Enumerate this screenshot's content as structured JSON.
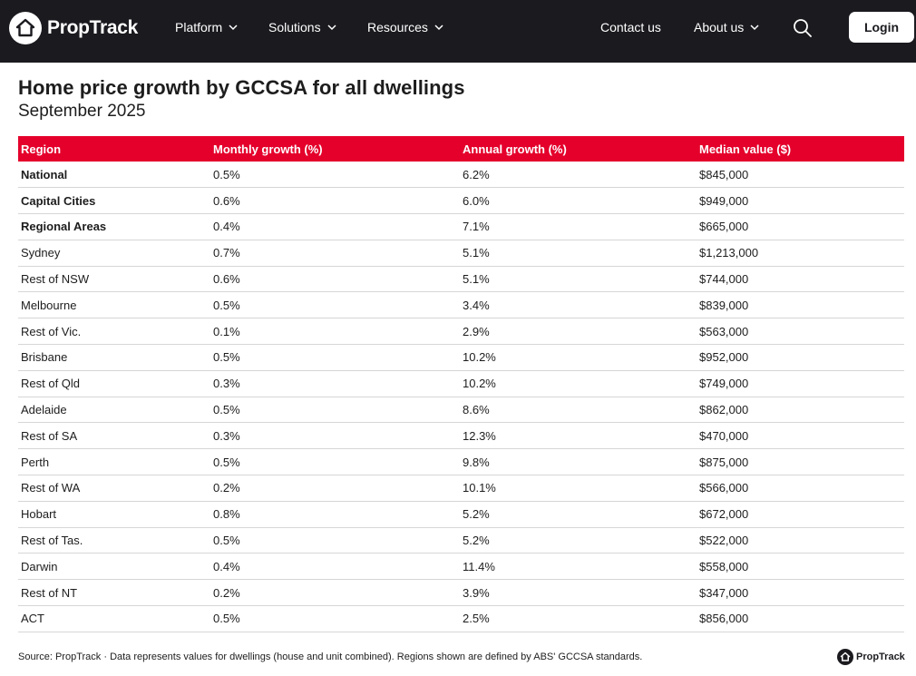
{
  "nav": {
    "logo_text": "PropTrack",
    "items": [
      {
        "label": "Platform"
      },
      {
        "label": "Solutions"
      },
      {
        "label": "Resources"
      },
      {
        "label": "Contact us"
      },
      {
        "label": "About us"
      }
    ],
    "login_label": "Login"
  },
  "page": {
    "title": "Home price growth by GCCSA for all dwellings",
    "subtitle": "September 2025"
  },
  "table": {
    "headers": [
      "Region",
      "Monthly growth (%)",
      "Annual growth (%)",
      "Median value ($)"
    ],
    "rows": [
      {
        "region": "National",
        "monthly": "0.5%",
        "annual": "6.2%",
        "median": "$845,000",
        "bold": true
      },
      {
        "region": "Capital Cities",
        "monthly": "0.6%",
        "annual": "6.0%",
        "median": "$949,000",
        "bold": true
      },
      {
        "region": "Regional Areas",
        "monthly": "0.4%",
        "annual": "7.1%",
        "median": "$665,000",
        "bold": true
      },
      {
        "region": "Sydney",
        "monthly": "0.7%",
        "annual": "5.1%",
        "median": "$1,213,000",
        "bold": false
      },
      {
        "region": "Rest of NSW",
        "monthly": "0.6%",
        "annual": "5.1%",
        "median": "$744,000",
        "bold": false
      },
      {
        "region": "Melbourne",
        "monthly": "0.5%",
        "annual": "3.4%",
        "median": "$839,000",
        "bold": false
      },
      {
        "region": "Rest of Vic.",
        "monthly": "0.1%",
        "annual": "2.9%",
        "median": "$563,000",
        "bold": false
      },
      {
        "region": "Brisbane",
        "monthly": "0.5%",
        "annual": "10.2%",
        "median": "$952,000",
        "bold": false
      },
      {
        "region": "Rest of Qld",
        "monthly": "0.3%",
        "annual": "10.2%",
        "median": "$749,000",
        "bold": false
      },
      {
        "region": "Adelaide",
        "monthly": "0.5%",
        "annual": "8.6%",
        "median": "$862,000",
        "bold": false
      },
      {
        "region": "Rest of SA",
        "monthly": "0.3%",
        "annual": "12.3%",
        "median": "$470,000",
        "bold": false
      },
      {
        "region": "Perth",
        "monthly": "0.5%",
        "annual": "9.8%",
        "median": "$875,000",
        "bold": false
      },
      {
        "region": "Rest of WA",
        "monthly": "0.2%",
        "annual": "10.1%",
        "median": "$566,000",
        "bold": false
      },
      {
        "region": "Hobart",
        "monthly": "0.8%",
        "annual": "5.2%",
        "median": "$672,000",
        "bold": false
      },
      {
        "region": "Rest of Tas.",
        "monthly": "0.5%",
        "annual": "5.2%",
        "median": "$522,000",
        "bold": false
      },
      {
        "region": "Darwin",
        "monthly": "0.4%",
        "annual": "11.4%",
        "median": "$558,000",
        "bold": false
      },
      {
        "region": "Rest of NT",
        "monthly": "0.2%",
        "annual": "3.9%",
        "median": "$347,000",
        "bold": false
      },
      {
        "region": "ACT",
        "monthly": "0.5%",
        "annual": "2.5%",
        "median": "$856,000",
        "bold": false
      }
    ]
  },
  "footer": {
    "source": "Source: PropTrack · Data represents values for dwellings (house and unit combined). Regions shown are defined by ABS' GCCSA standards.",
    "logo_text": "PropTrack"
  },
  "colors": {
    "nav_bg": "#1b1a1f",
    "header_red": "#e4002b",
    "text": "#1d1d1d"
  },
  "icons": {
    "logo": "house-logo-icon",
    "dropdown": "chevron-down-icon",
    "search": "search-icon"
  }
}
